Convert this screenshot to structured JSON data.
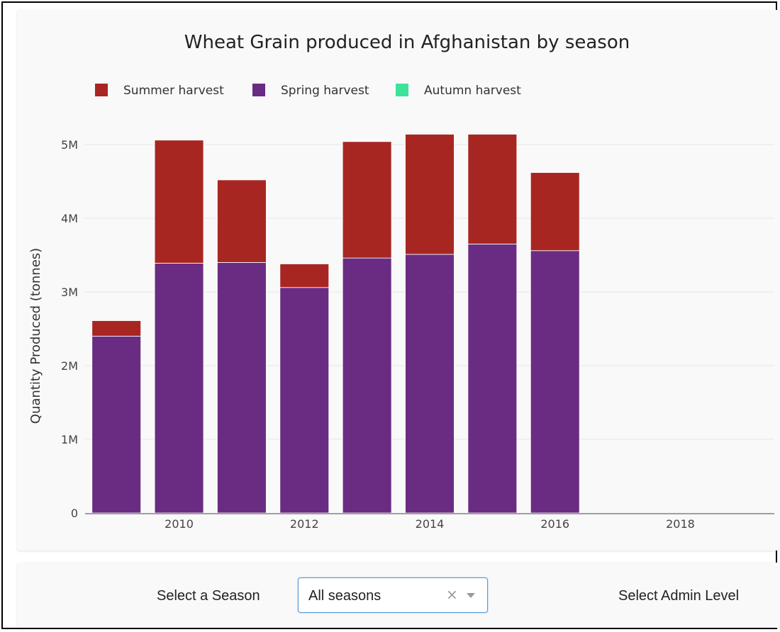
{
  "chart_data": {
    "type": "bar",
    "stacked": true,
    "title": "Wheat Grain produced in Afghanistan by season",
    "xlabel": "",
    "ylabel": "Quantity Produced (tonnes)",
    "ylim": [
      0,
      5000000
    ],
    "xlim": [
      2008.5,
      2019.5
    ],
    "x_ticks": [
      2010,
      2012,
      2014,
      2016,
      2018
    ],
    "x_tick_labels": [
      "2010",
      "2012",
      "2014",
      "2016",
      "2018"
    ],
    "y_ticks": [
      0,
      1000000,
      2000000,
      3000000,
      4000000,
      5000000
    ],
    "y_tick_labels": [
      "0",
      "1M",
      "2M",
      "3M",
      "4M",
      "5M"
    ],
    "years": [
      2009,
      2010,
      2011,
      2012,
      2013,
      2014,
      2015,
      2016
    ],
    "series": [
      {
        "name": "Spring harvest",
        "color": "#6a2c82",
        "values": [
          2400000,
          3390000,
          3400000,
          3060000,
          3460000,
          3510000,
          3650000,
          3560000
        ]
      },
      {
        "name": "Summer harvest",
        "color": "#a82621",
        "values": [
          210000,
          1670000,
          1120000,
          320000,
          1580000,
          1630000,
          1490000,
          1060000
        ]
      }
    ],
    "legend": [
      {
        "name": "Summer harvest",
        "color": "#a82621"
      },
      {
        "name": "Spring harvest",
        "color": "#6a2c82"
      },
      {
        "name": "Autumn harvest",
        "color": "#3ee39a"
      }
    ],
    "legend_position": "top-left",
    "grid": true
  },
  "controls": {
    "season_label": "Select a Season",
    "season_value": "All seasons",
    "clear_glyph": "×",
    "admin_label": "Select Admin Level"
  }
}
